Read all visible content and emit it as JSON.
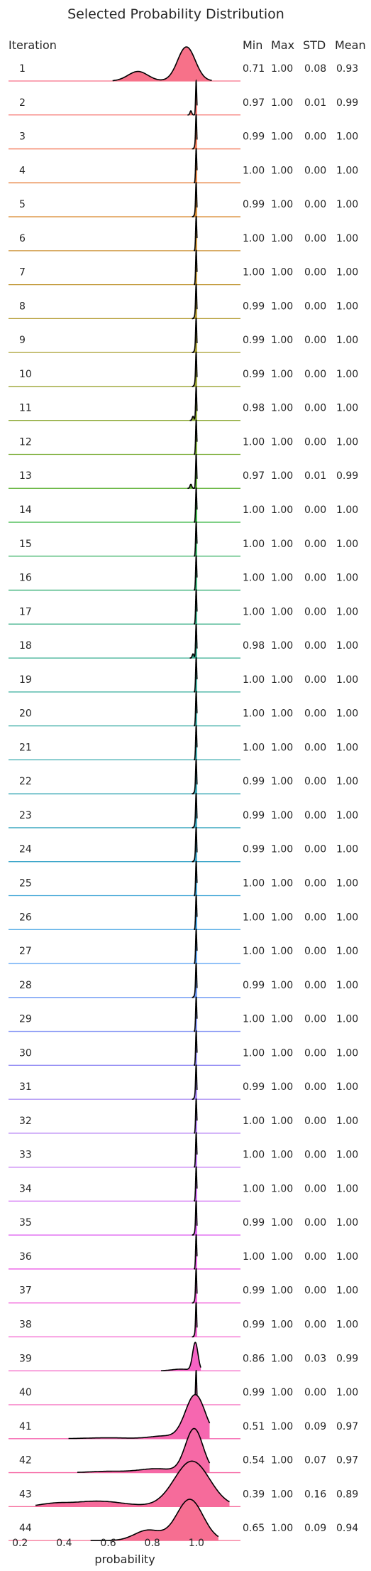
{
  "chart_data": {
    "type": "ridgeline",
    "title": "Selected Probability Distribution",
    "xlabel": "probability",
    "row_header": "Iteration",
    "stat_headers": [
      "Min",
      "Max",
      "STD",
      "Mean"
    ],
    "x_ticks": [
      "0.2",
      "0.4",
      "0.6",
      "0.8",
      "1.0"
    ],
    "xlim": [
      0.18,
      1.2
    ],
    "rows": [
      {
        "iteration": "1",
        "min": "0.71",
        "max": "1.00",
        "std": "0.08",
        "mean": "0.93",
        "color": "#f77189"
      },
      {
        "iteration": "2",
        "min": "0.97",
        "max": "1.00",
        "std": "0.01",
        "mean": "0.99",
        "color": "#f67571"
      },
      {
        "iteration": "3",
        "min": "0.99",
        "max": "1.00",
        "std": "0.00",
        "mean": "1.00",
        "color": "#f37b5a"
      },
      {
        "iteration": "4",
        "min": "1.00",
        "max": "1.00",
        "std": "0.00",
        "mean": "1.00",
        "color": "#e8803d"
      },
      {
        "iteration": "5",
        "min": "0.99",
        "max": "1.00",
        "std": "0.00",
        "mean": "1.00",
        "color": "#d98b32"
      },
      {
        "iteration": "6",
        "min": "1.00",
        "max": "1.00",
        "std": "0.00",
        "mean": "1.00",
        "color": "#cc9132"
      },
      {
        "iteration": "7",
        "min": "1.00",
        "max": "1.00",
        "std": "0.00",
        "mean": "1.00",
        "color": "#c09632"
      },
      {
        "iteration": "8",
        "min": "0.99",
        "max": "1.00",
        "std": "0.00",
        "mean": "1.00",
        "color": "#b49b32"
      },
      {
        "iteration": "9",
        "min": "0.99",
        "max": "1.00",
        "std": "0.00",
        "mean": "1.00",
        "color": "#a89f32"
      },
      {
        "iteration": "10",
        "min": "0.99",
        "max": "1.00",
        "std": "0.00",
        "mean": "1.00",
        "color": "#9ba332"
      },
      {
        "iteration": "11",
        "min": "0.98",
        "max": "1.00",
        "std": "0.00",
        "mean": "1.00",
        "color": "#8ba832"
      },
      {
        "iteration": "12",
        "min": "1.00",
        "max": "1.00",
        "std": "0.00",
        "mean": "1.00",
        "color": "#77ac32"
      },
      {
        "iteration": "13",
        "min": "0.97",
        "max": "1.00",
        "std": "0.01",
        "mean": "0.99",
        "color": "#5bb132"
      },
      {
        "iteration": "14",
        "min": "1.00",
        "max": "1.00",
        "std": "0.00",
        "mean": "1.00",
        "color": "#33b33f"
      },
      {
        "iteration": "15",
        "min": "1.00",
        "max": "1.00",
        "std": "0.00",
        "mean": "1.00",
        "color": "#34b162"
      },
      {
        "iteration": "16",
        "min": "1.00",
        "max": "1.00",
        "std": "0.00",
        "mean": "1.00",
        "color": "#35b076"
      },
      {
        "iteration": "17",
        "min": "1.00",
        "max": "1.00",
        "std": "0.00",
        "mean": "1.00",
        "color": "#35ae85"
      },
      {
        "iteration": "18",
        "min": "0.98",
        "max": "1.00",
        "std": "0.00",
        "mean": "1.00",
        "color": "#36ad91"
      },
      {
        "iteration": "19",
        "min": "1.00",
        "max": "1.00",
        "std": "0.00",
        "mean": "1.00",
        "color": "#36ac9b"
      },
      {
        "iteration": "20",
        "min": "1.00",
        "max": "1.00",
        "std": "0.00",
        "mean": "1.00",
        "color": "#37aaa4"
      },
      {
        "iteration": "21",
        "min": "1.00",
        "max": "1.00",
        "std": "0.00",
        "mean": "1.00",
        "color": "#37a9ad"
      },
      {
        "iteration": "22",
        "min": "0.99",
        "max": "1.00",
        "std": "0.00",
        "mean": "1.00",
        "color": "#38a8b6"
      },
      {
        "iteration": "23",
        "min": "0.99",
        "max": "1.00",
        "std": "0.00",
        "mean": "1.00",
        "color": "#39a7bf"
      },
      {
        "iteration": "24",
        "min": "0.99",
        "max": "1.00",
        "std": "0.00",
        "mean": "1.00",
        "color": "#3aa5c9"
      },
      {
        "iteration": "25",
        "min": "1.00",
        "max": "1.00",
        "std": "0.00",
        "mean": "1.00",
        "color": "#3ba3d5"
      },
      {
        "iteration": "26",
        "min": "1.00",
        "max": "1.00",
        "std": "0.00",
        "mean": "1.00",
        "color": "#3da0e3"
      },
      {
        "iteration": "27",
        "min": "1.00",
        "max": "1.00",
        "std": "0.00",
        "mean": "1.00",
        "color": "#509ef4"
      },
      {
        "iteration": "28",
        "min": "0.99",
        "max": "1.00",
        "std": "0.00",
        "mean": "1.00",
        "color": "#6b98f4"
      },
      {
        "iteration": "29",
        "min": "1.00",
        "max": "1.00",
        "std": "0.00",
        "mean": "1.00",
        "color": "#8192f4"
      },
      {
        "iteration": "30",
        "min": "1.00",
        "max": "1.00",
        "std": "0.00",
        "mean": "1.00",
        "color": "#938bf4"
      },
      {
        "iteration": "31",
        "min": "0.99",
        "max": "1.00",
        "std": "0.00",
        "mean": "1.00",
        "color": "#a384f4"
      },
      {
        "iteration": "32",
        "min": "1.00",
        "max": "1.00",
        "std": "0.00",
        "mean": "1.00",
        "color": "#b27cf4"
      },
      {
        "iteration": "33",
        "min": "1.00",
        "max": "1.00",
        "std": "0.00",
        "mean": "1.00",
        "color": "#c173f4"
      },
      {
        "iteration": "34",
        "min": "1.00",
        "max": "1.00",
        "std": "0.00",
        "mean": "1.00",
        "color": "#d06af3"
      },
      {
        "iteration": "35",
        "min": "0.99",
        "max": "1.00",
        "std": "0.00",
        "mean": "1.00",
        "color": "#df61f0"
      },
      {
        "iteration": "36",
        "min": "1.00",
        "max": "1.00",
        "std": "0.00",
        "mean": "1.00",
        "color": "#ec5ee6"
      },
      {
        "iteration": "37",
        "min": "0.99",
        "max": "1.00",
        "std": "0.00",
        "mean": "1.00",
        "color": "#f35fda"
      },
      {
        "iteration": "38",
        "min": "0.99",
        "max": "1.00",
        "std": "0.00",
        "mean": "1.00",
        "color": "#f461ce"
      },
      {
        "iteration": "39",
        "min": "0.86",
        "max": "1.00",
        "std": "0.03",
        "mean": "0.99",
        "color": "#f563c4"
      },
      {
        "iteration": "40",
        "min": "0.99",
        "max": "1.00",
        "std": "0.00",
        "mean": "1.00",
        "color": "#f565ba"
      },
      {
        "iteration": "41",
        "min": "0.51",
        "max": "1.00",
        "std": "0.09",
        "mean": "0.97",
        "color": "#f667b0"
      },
      {
        "iteration": "42",
        "min": "0.54",
        "max": "1.00",
        "std": "0.07",
        "mean": "0.97",
        "color": "#f669a6"
      },
      {
        "iteration": "43",
        "min": "0.39",
        "max": "1.00",
        "std": "0.16",
        "mean": "0.89",
        "color": "#f66b9b"
      },
      {
        "iteration": "44",
        "min": "0.65",
        "max": "1.00",
        "std": "0.09",
        "mean": "0.94",
        "color": "#f66e91"
      }
    ]
  }
}
